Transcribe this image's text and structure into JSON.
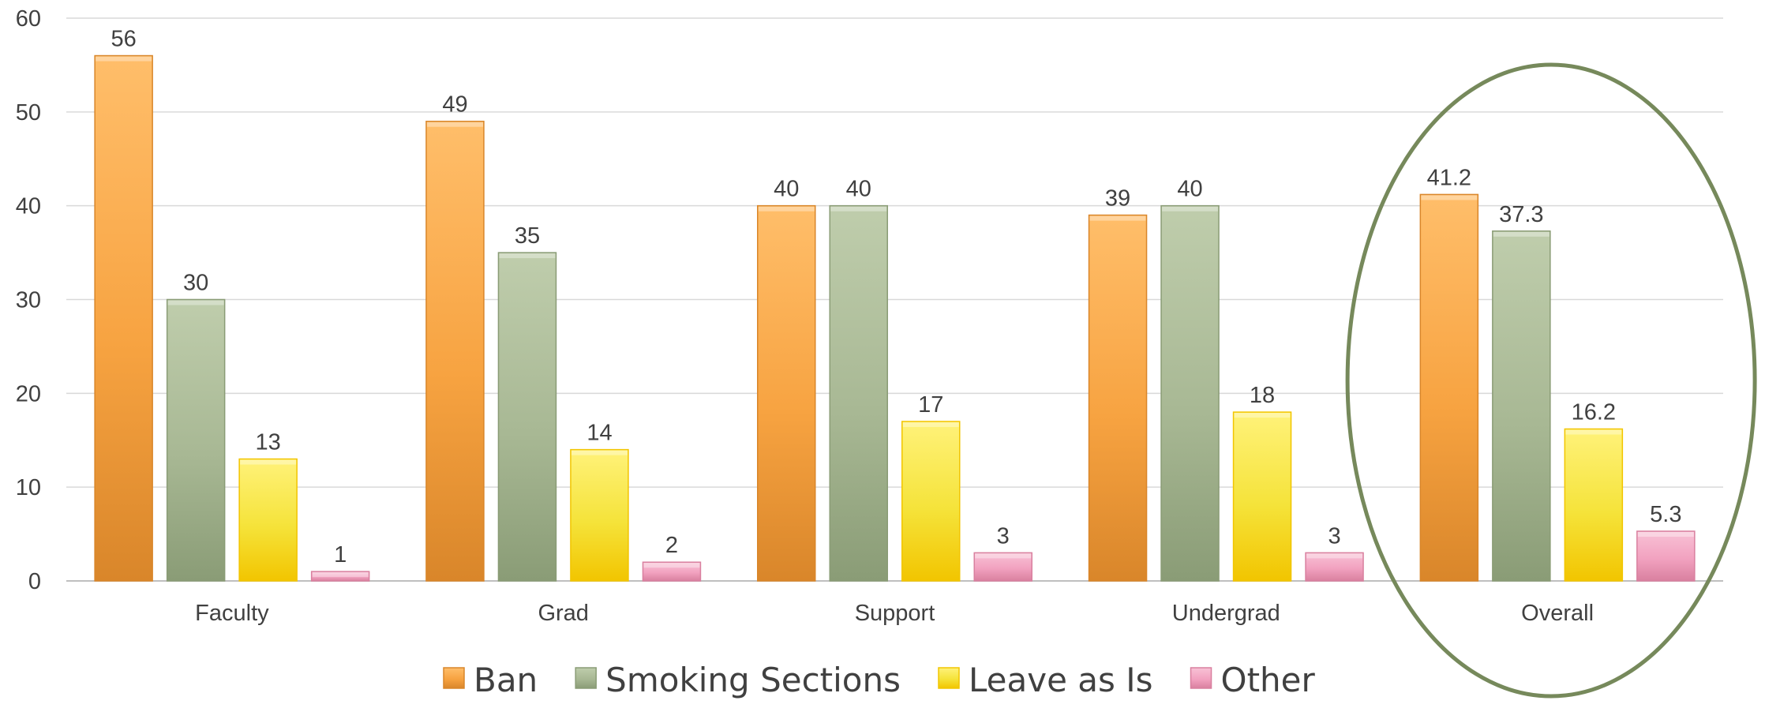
{
  "chart_data": {
    "type": "bar",
    "title": "",
    "xlabel": "",
    "ylabel": "",
    "categories": [
      "Faculty",
      "Grad",
      "Support",
      "Undergrad",
      "Overall"
    ],
    "series": [
      {
        "name": "Ban",
        "values": [
          56,
          49,
          40,
          39,
          41.2
        ],
        "labels": [
          "56",
          "49",
          "40",
          "39",
          "41.2"
        ],
        "color": "#F7A341",
        "color_light": "#FFBE6A",
        "color_dark": "#D9862A"
      },
      {
        "name": "Smoking Sections",
        "values": [
          30,
          35,
          40,
          40,
          37.3
        ],
        "labels": [
          "30",
          "35",
          "40",
          "40",
          "37.3"
        ],
        "color": "#A8B894",
        "color_light": "#BFCDAC",
        "color_dark": "#8A9C76"
      },
      {
        "name": "Leave as Is",
        "values": [
          13,
          14,
          17,
          18,
          16.2
        ],
        "labels": [
          "13",
          "14",
          "17",
          "18",
          "16.2"
        ],
        "color": "#F5E33A",
        "color_light": "#FFF27A",
        "color_dark": "#F2C500"
      },
      {
        "name": "Other",
        "values": [
          1,
          2,
          3,
          3,
          5.3
        ],
        "labels": [
          "1",
          "2",
          "3",
          "3",
          "5.3"
        ],
        "color": "#F2A2C0",
        "color_light": "#F8C2D6",
        "color_dark": "#D9809F"
      }
    ],
    "ylim": [
      0,
      60
    ],
    "yticks": [
      0,
      10,
      20,
      30,
      40,
      50,
      60
    ],
    "grid": true,
    "legend_position": "bottom",
    "highlight": {
      "category": "Overall",
      "shape": "ellipse",
      "color": "#76895B"
    }
  }
}
